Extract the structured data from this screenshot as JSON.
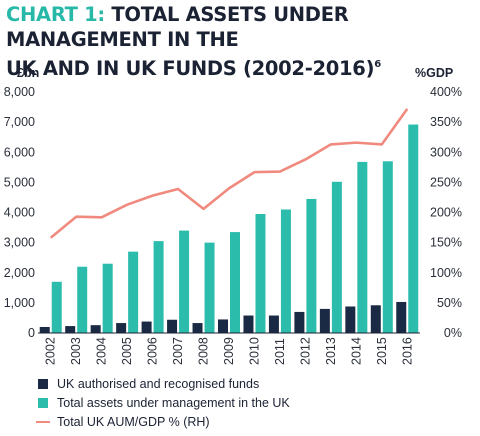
{
  "title": {
    "prefix": "CHART 1:",
    "line1": "TOTAL ASSETS UNDER MANAGEMENT IN THE",
    "line2": "UK AND IN UK FUNDS (2002-2016)",
    "footnote": "6"
  },
  "colors": {
    "funds": "#1b2a44",
    "total": "#2bbcac",
    "gdp": "#f08a7e",
    "title_accent": "#27b8a8"
  },
  "chart_data": {
    "type": "bar",
    "categories": [
      "2002",
      "2003",
      "2004",
      "2005",
      "2006",
      "2007",
      "2008",
      "2009",
      "2010",
      "2011",
      "2012",
      "2013",
      "2014",
      "2015",
      "2016"
    ],
    "left_axis": {
      "unit": "£bn",
      "ylim": [
        0,
        8000
      ],
      "ticks": [
        "0",
        "1,000",
        "2,000",
        "3,000",
        "4,000",
        "5,000",
        "6,000",
        "7,000",
        "8,000"
      ]
    },
    "right_axis": {
      "unit": "%GDP",
      "ylim": [
        0,
        400
      ],
      "ticks": [
        "0%",
        "50%",
        "100%",
        "150%",
        "200%",
        "250%",
        "300%",
        "350%",
        "400%"
      ]
    },
    "series": [
      {
        "name": "UK authorised and recognised funds",
        "type": "bar",
        "axis": "left",
        "values": [
          200,
          230,
          260,
          330,
          380,
          440,
          330,
          450,
          580,
          580,
          700,
          800,
          880,
          920,
          1030
        ]
      },
      {
        "name": "Total assets under management in the UK",
        "type": "bar",
        "axis": "left",
        "values": [
          1700,
          2200,
          2300,
          2700,
          3050,
          3400,
          3000,
          3350,
          3950,
          4100,
          4450,
          5020,
          5680,
          5700,
          6920
        ]
      },
      {
        "name": "Total UK AUM/GDP % (RH)",
        "type": "line",
        "axis": "right",
        "values": [
          158,
          193,
          192,
          213,
          228,
          239,
          206,
          240,
          267,
          268,
          288,
          313,
          316,
          313,
          372
        ]
      }
    ],
    "grid": false,
    "legend": "bottom-left"
  }
}
